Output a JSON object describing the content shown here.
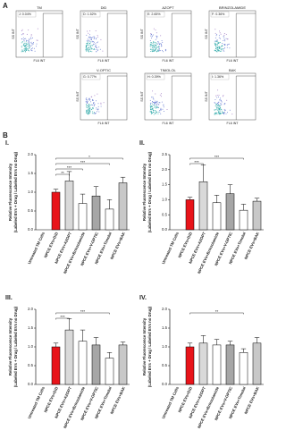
{
  "panel_a": {
    "label": "A",
    "x_label": "FL6 INT",
    "y_label": "SS INT",
    "plots": [
      {
        "title": "TM",
        "gate": "J: 0.04%"
      },
      {
        "title": "DiD",
        "gate": "D: 1.52%"
      },
      {
        "title": "AZOPT",
        "gate": "E: 2.65%"
      },
      {
        "title": "BRINZOLAMIDE",
        "gate": "F: 0.36%"
      },
      {
        "title": "V-OPTIC",
        "gate": "G: 0.77%"
      },
      {
        "title": "TIMOLOL",
        "gate": "H: 0.39%"
      },
      {
        "title": "BAK",
        "gate": "I: 1.36%"
      }
    ]
  },
  "panel_b": {
    "label": "B"
  },
  "chart_data": [
    {
      "type": "bar",
      "title": "I.",
      "ylabel": [
        "Relative Fluorescence Intensity",
        "(Labeled EVs + Drug / Labeled EVs no Drug)"
      ],
      "categories": [
        "Untreated TM Cells",
        "NPCE EVs+DiD",
        "NPCE EVs+AZOPT",
        "NPCE EVs+Brinzolamide",
        "NPCE EVs+V-OPTIC",
        "NPCE EVs+Timolol",
        "NPCE EVs+BAK"
      ],
      "colors": [
        "#000000",
        "#e8141a",
        "#d9d9d9",
        "#ffffff",
        "#a6a6a6",
        "#ffffff",
        "#c8c8c8"
      ],
      "values": [
        0,
        1.0,
        1.3,
        0.7,
        0.9,
        0.55,
        1.25
      ],
      "errors": [
        0,
        0.08,
        0.25,
        0.25,
        0.25,
        0.25,
        0.15
      ],
      "ylim": [
        0,
        2.0
      ],
      "yticks": [
        {
          "value": 0,
          "label": "0.0"
        },
        0.5,
        {
          "value": 1,
          "label": "1.0"
        },
        1.5,
        {
          "value": 2,
          "label": "2.0"
        }
      ],
      "significance": [
        {
          "between": [
            "NPCE EVs+DiD",
            "NPCE EVs+AZOPT"
          ],
          "label": "**"
        },
        {
          "between": [
            "NPCE EVs+DiD",
            "NPCE EVs+Brinzolamide"
          ],
          "label": "***"
        },
        {
          "between": [
            "NPCE EVs+DiD",
            "NPCE EVs+Timolol"
          ],
          "label": "***"
        },
        {
          "between": [
            "NPCE EVs+DiD",
            "NPCE EVs+BAK"
          ],
          "label": "*"
        }
      ]
    },
    {
      "type": "bar",
      "title": "II.",
      "ylabel": [
        "Relative Fluorescence Intensity",
        "(Labeled EVs + Drug / Labeled EVs no Drug)"
      ],
      "categories": [
        "Untreated TM Cells",
        "NPCE EVs+DiD",
        "NPCE EVs+AZOPT",
        "NPCE EVs+Brinzolamide",
        "NPCE EVs+V-OPTIC",
        "NPCE EVs+Timolol",
        "NPCE EVs+BAK"
      ],
      "colors": [
        "#000000",
        "#e8141a",
        "#d9d9d9",
        "#ffffff",
        "#a6a6a6",
        "#ffffff",
        "#c8c8c8"
      ],
      "values": [
        0,
        1.0,
        1.6,
        0.9,
        1.2,
        0.65,
        0.95
      ],
      "errors": [
        0,
        0.08,
        0.55,
        0.25,
        0.3,
        0.2,
        0.1
      ],
      "ylim": [
        0,
        2.5
      ],
      "yticks": [
        {
          "value": 0,
          "label": "0.0"
        },
        0.5,
        {
          "value": 1,
          "label": "1.0"
        },
        1.5,
        {
          "value": 2,
          "label": "2.0"
        },
        2.5
      ],
      "significance": [
        {
          "between": [
            "NPCE EVs+DiD",
            "NPCE EVs+AZOPT"
          ],
          "label": "***"
        },
        {
          "between": [
            "NPCE EVs+DiD",
            "NPCE EVs+Timolol"
          ],
          "label": "***"
        }
      ]
    },
    {
      "type": "bar",
      "title": "III.",
      "ylabel": [
        "Relative Fluorescence Intensity",
        "(Labeled EVs + Drug / Labeled EVs no Drug)"
      ],
      "categories": [
        "Untreated TM Cells",
        "NPCE EVs+DiD",
        "NPCE EVs+AZOPT",
        "NPCE EVs+Brinzolamide",
        "NPCE EVs+V-OPTIC",
        "NPCE EVs+Timolol",
        "NPCE EVs+BAK"
      ],
      "colors": [
        "#000000",
        "#e8141a",
        "#d9d9d9",
        "#ffffff",
        "#a6a6a6",
        "#ffffff",
        "#c8c8c8"
      ],
      "values": [
        0,
        1.0,
        1.45,
        1.15,
        1.05,
        0.7,
        1.05
      ],
      "errors": [
        0,
        0.1,
        0.3,
        0.3,
        0.2,
        0.15,
        0.08
      ],
      "ylim": [
        0,
        2.0
      ],
      "yticks": [
        {
          "value": 0,
          "label": "0.0"
        },
        0.5,
        {
          "value": 1,
          "label": "1.0"
        },
        1.5,
        {
          "value": 2,
          "label": "2.0"
        }
      ],
      "significance": [
        {
          "between": [
            "NPCE EVs+DiD",
            "NPCE EVs+AZOPT"
          ],
          "label": "***"
        },
        {
          "between": [
            "NPCE EVs+DiD",
            "NPCE EVs+Timolol"
          ],
          "label": "***"
        }
      ]
    },
    {
      "type": "bar",
      "title": "IV.",
      "ylabel": [
        "Relative Fluorescence Intensity",
        "(Labeled EVs + Drug / Labeled EVs no Drug)"
      ],
      "categories": [
        "Untreated TM Cells",
        "NPCE EVs+DiD",
        "NPCE EVs+AZOPT",
        "NPCE EVs+Brinzolamide",
        "NPCE EVs+V-OPTIC",
        "NPCE EVs+Timolol",
        "NPCE EVs+BAK"
      ],
      "colors": [
        "#000000",
        "#e8141a",
        "#d9d9d9",
        "#ffffff",
        "#a6a6a6",
        "#ffffff",
        "#c8c8c8"
      ],
      "values": [
        0,
        1.0,
        1.1,
        1.05,
        1.05,
        0.85,
        1.1
      ],
      "errors": [
        0,
        0.1,
        0.2,
        0.15,
        0.1,
        0.1,
        0.15
      ],
      "ylim": [
        0,
        2.0
      ],
      "yticks": [
        {
          "value": 0,
          "label": "0.0"
        },
        0.5,
        {
          "value": 1,
          "label": "1.0"
        },
        1.5,
        {
          "value": 2,
          "label": "2.0"
        }
      ],
      "significance": [
        {
          "between": [
            "NPCE EVs+DiD",
            "NPCE EVs+Timolol"
          ],
          "label": "**"
        }
      ]
    }
  ]
}
